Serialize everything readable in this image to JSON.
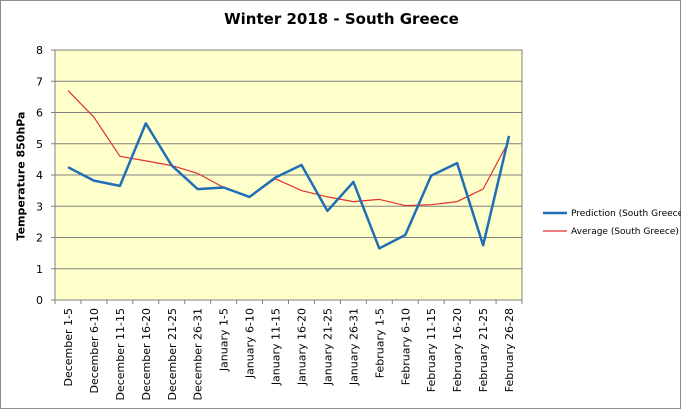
{
  "chart_data": {
    "type": "line",
    "title": "Winter 2018 - South Greece",
    "xlabel": "",
    "ylabel": "Temperature 850hPa",
    "ylim": [
      0,
      8
    ],
    "yticks": [
      "0",
      "1",
      "2",
      "3",
      "4",
      "5",
      "6",
      "7",
      "8"
    ],
    "grid": true,
    "legend_position": "right",
    "plot_background": "#ffffcc",
    "categories": [
      "December 1-5",
      "December 6-10",
      "December 11-15",
      "December 16-20",
      "December 21-25",
      "December 26-31",
      "January 1-5",
      "January 6-10",
      "January 11-15",
      "January 16-20",
      "January 21-25",
      "January 26-31",
      "February 1-5",
      "February 6-10",
      "February 11-15",
      "February 16-20",
      "February 21-25",
      "February 26-28"
    ],
    "series": [
      {
        "name": "Prediction (South Greece)",
        "color": "#1f6fb4",
        "values": [
          4.25,
          3.82,
          3.65,
          5.65,
          4.3,
          3.55,
          3.6,
          3.3,
          3.92,
          4.32,
          2.85,
          3.78,
          1.65,
          2.08,
          3.98,
          4.38,
          1.75,
          5.25
        ]
      },
      {
        "name": "Average (South Greece)",
        "color": "#e03030",
        "values": [
          6.7,
          5.85,
          4.6,
          4.45,
          4.3,
          4.05,
          3.6,
          3.3,
          3.88,
          3.5,
          3.3,
          3.15,
          3.22,
          3.02,
          3.05,
          3.15,
          3.55,
          5.1
        ]
      }
    ]
  }
}
